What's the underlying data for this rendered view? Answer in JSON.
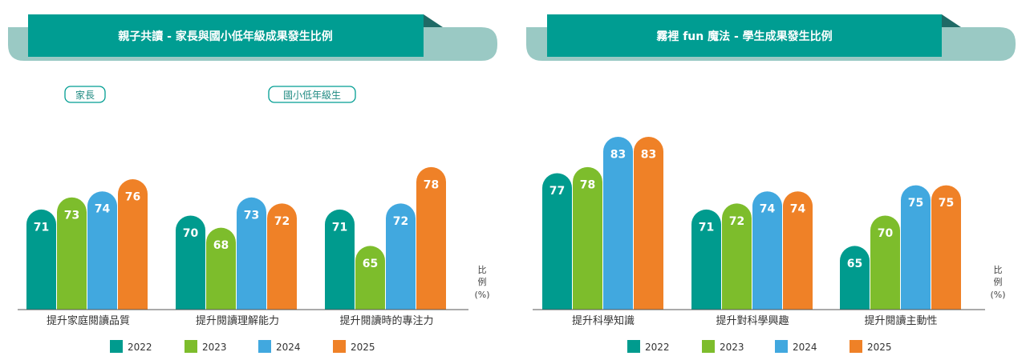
{
  "colors": {
    "2022": "#009b8e",
    "2023": "#7dbd2c",
    "2024": "#41a8df",
    "2025": "#ef8127",
    "banner": "#009d92",
    "banner_bg": "#9ac9c4",
    "fold": "#1f6a66"
  },
  "legend": [
    "2022",
    "2023",
    "2024",
    "2025"
  ],
  "unit_label": [
    "比",
    "例",
    "(%)"
  ],
  "chart_data": [
    {
      "type": "bar",
      "title": "親子共讀 - 家長與國小低年級成果發生比例",
      "group_tags": [
        "家長",
        "國小低年級生"
      ],
      "categories": [
        "提升家庭閱讀品質",
        "提升閱讀理解能力",
        "提升閱讀時的專注力"
      ],
      "series": [
        {
          "name": "2022",
          "values": [
            71,
            70,
            71
          ]
        },
        {
          "name": "2023",
          "values": [
            73,
            68,
            65
          ]
        },
        {
          "name": "2024",
          "values": [
            74,
            73,
            72
          ]
        },
        {
          "name": "2025",
          "values": [
            76,
            72,
            78
          ]
        }
      ],
      "ylabel": "比例 (%)",
      "grid": false,
      "legend_position": "bottom"
    },
    {
      "type": "bar",
      "title": "霧裡 fun 魔法 - 學生成果發生比例",
      "categories": [
        "提升科學知識",
        "提升對科學興趣",
        "提升閱讀主動性"
      ],
      "series": [
        {
          "name": "2022",
          "values": [
            77,
            71,
            65
          ]
        },
        {
          "name": "2023",
          "values": [
            78,
            72,
            70
          ]
        },
        {
          "name": "2024",
          "values": [
            83,
            74,
            75
          ]
        },
        {
          "name": "2025",
          "values": [
            83,
            74,
            75
          ]
        }
      ],
      "ylabel": "比例 (%)",
      "grid": false,
      "legend_position": "bottom"
    }
  ]
}
